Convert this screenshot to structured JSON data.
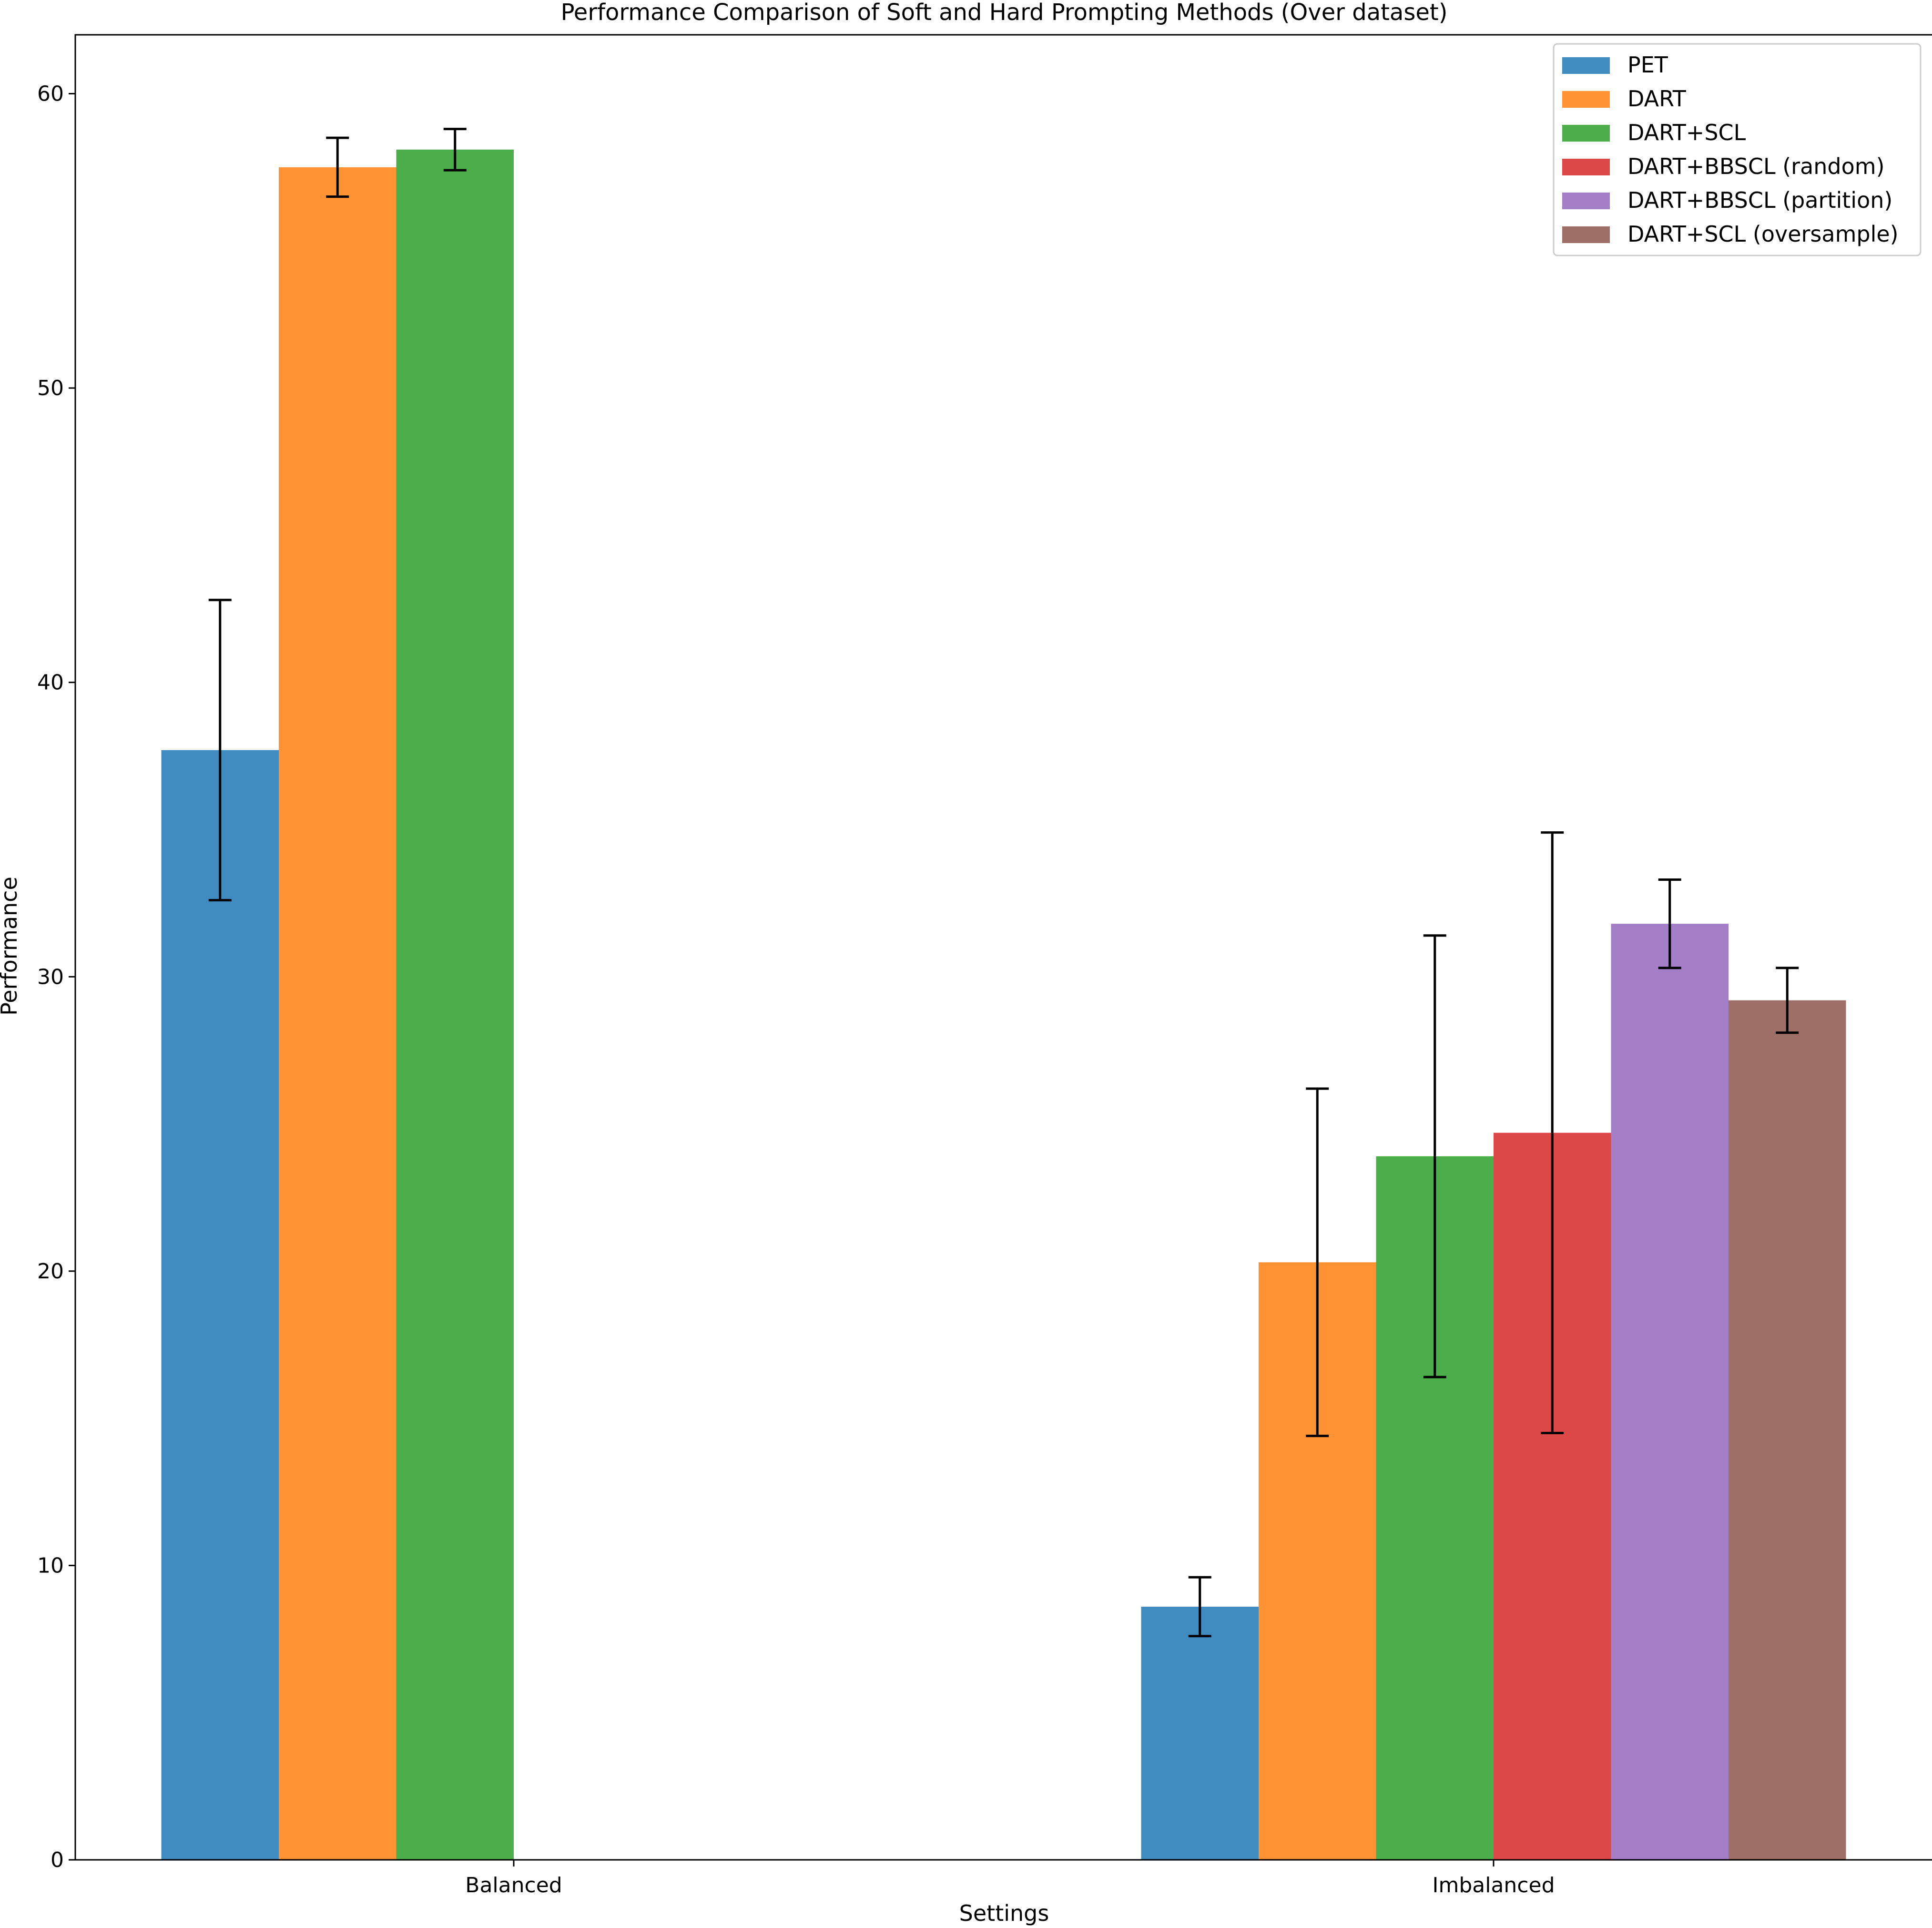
{
  "chart_data": {
    "type": "bar",
    "title": "Performance Comparison of Soft and Hard Prompting Methods (Over dataset)",
    "xlabel": "Settings",
    "ylabel": "Performance",
    "categories": [
      "Balanced",
      "Imbalanced"
    ],
    "ylim": [
      0,
      62
    ],
    "yticks": [
      0,
      10,
      20,
      30,
      40,
      50,
      60
    ],
    "legend_position": "top-right",
    "grid": false,
    "series": [
      {
        "name": "PET",
        "color": "#1f77b4",
        "values": [
          37.7,
          8.6
        ],
        "errors": [
          [
            32.6,
            42.8
          ],
          [
            7.6,
            9.6
          ]
        ]
      },
      {
        "name": "DART",
        "color": "#ff7f0e",
        "values": [
          57.5,
          20.3
        ],
        "errors": [
          [
            56.5,
            58.5
          ],
          [
            14.4,
            26.2
          ]
        ]
      },
      {
        "name": "DART+SCL",
        "color": "#2ca02c",
        "values": [
          58.1,
          23.9
        ],
        "errors": [
          [
            57.4,
            58.8
          ],
          [
            16.4,
            31.4
          ]
        ]
      },
      {
        "name": "DART+BBSCL (random)",
        "color": "#d62728",
        "values": [
          0,
          24.7
        ],
        "errors": [
          null,
          [
            14.5,
            34.9
          ]
        ]
      },
      {
        "name": "DART+BBSCL (partition)",
        "color": "#9467bd",
        "values": [
          0,
          31.8
        ],
        "errors": [
          null,
          [
            30.3,
            33.3
          ]
        ]
      },
      {
        "name": "DART+SCL (oversample)",
        "color": "#8c564b",
        "values": [
          0,
          29.2
        ],
        "errors": [
          null,
          [
            28.1,
            30.3
          ]
        ]
      }
    ]
  }
}
